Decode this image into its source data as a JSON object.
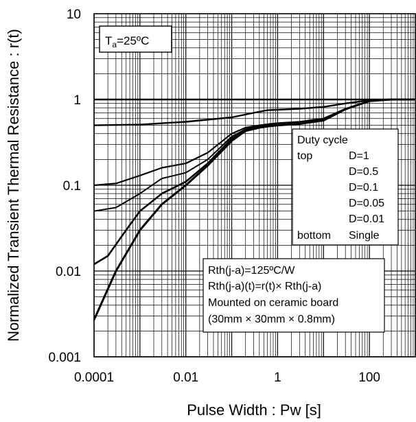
{
  "chart_data": {
    "type": "line",
    "xlabel": "Pulse Width : Pw [s]",
    "ylabel": "Normalized Transient Thermal Resistance : r(t)",
    "x_scale": "log",
    "y_scale": "log",
    "xlim": [
      0.0001,
      1000
    ],
    "ylim": [
      0.001,
      10
    ],
    "grid": true,
    "x_tick_labels": [
      "0.0001",
      "0.01",
      "1",
      "100"
    ],
    "y_tick_labels": [
      "0.001",
      "0.01",
      "0.1",
      "1",
      "10"
    ],
    "ambient_label": {
      "prefix": "T",
      "subscript": "a",
      "suffix": "=25ºC"
    },
    "legend": {
      "title": "Duty cycle",
      "top_label": "top",
      "bottom_label": "bottom",
      "entries": [
        "D=1",
        "D=0.5",
        "D=0.1",
        "D=0.05",
        "D=0.01",
        "Single"
      ]
    },
    "notes": [
      "Rth(j-a)=125ºC/W",
      "Rth(j-a)(t)=r(t)× Rth(j-a)",
      "Mounted on ceramic board",
      "(30mm × 30mm × 0.8mm)"
    ],
    "series": [
      {
        "name": "D=1",
        "x": [
          0.0001,
          1000
        ],
        "y": [
          1,
          1
        ]
      },
      {
        "name": "D=0.5",
        "x": [
          0.0001,
          0.001,
          0.01,
          0.1,
          0.3,
          0.6,
          1,
          3,
          10,
          30,
          100,
          300,
          1000
        ],
        "y": [
          0.5,
          0.51,
          0.55,
          0.62,
          0.7,
          0.75,
          0.76,
          0.78,
          0.82,
          0.9,
          0.98,
          1.0,
          1.0
        ]
      },
      {
        "name": "D=0.1",
        "x": [
          0.0001,
          0.0003,
          0.001,
          0.003,
          0.01,
          0.03,
          0.1,
          0.2,
          0.4,
          0.7,
          1,
          3,
          10,
          30,
          100,
          300,
          1000
        ],
        "y": [
          0.1,
          0.105,
          0.13,
          0.16,
          0.18,
          0.24,
          0.4,
          0.47,
          0.5,
          0.52,
          0.53,
          0.55,
          0.6,
          0.78,
          0.96,
          1.0,
          1.0
        ]
      },
      {
        "name": "D=0.05",
        "x": [
          0.0001,
          0.0003,
          0.001,
          0.003,
          0.01,
          0.03,
          0.1,
          0.2,
          0.4,
          0.7,
          1,
          3,
          10,
          30,
          100,
          300,
          1000
        ],
        "y": [
          0.05,
          0.055,
          0.08,
          0.12,
          0.14,
          0.2,
          0.37,
          0.45,
          0.49,
          0.5,
          0.51,
          0.53,
          0.58,
          0.77,
          0.96,
          1.0,
          1.0
        ]
      },
      {
        "name": "D=0.01",
        "x": [
          0.0001,
          0.0002,
          0.0005,
          0.001,
          0.003,
          0.01,
          0.03,
          0.1,
          0.2,
          0.4,
          0.7,
          1,
          3,
          10,
          30,
          100,
          300,
          1000
        ],
        "y": [
          0.012,
          0.015,
          0.03,
          0.05,
          0.08,
          0.11,
          0.18,
          0.35,
          0.44,
          0.48,
          0.5,
          0.5,
          0.52,
          0.57,
          0.77,
          0.96,
          1.0,
          1.0
        ]
      },
      {
        "name": "Single",
        "x": [
          0.0001,
          0.0003,
          0.001,
          0.003,
          0.01,
          0.03,
          0.1,
          0.2,
          0.4,
          0.7,
          1,
          3,
          10,
          30,
          100,
          300,
          1000
        ],
        "y": [
          0.0027,
          0.01,
          0.03,
          0.06,
          0.1,
          0.17,
          0.33,
          0.43,
          0.47,
          0.49,
          0.5,
          0.52,
          0.57,
          0.77,
          0.96,
          1.0,
          1.0
        ]
      }
    ]
  }
}
